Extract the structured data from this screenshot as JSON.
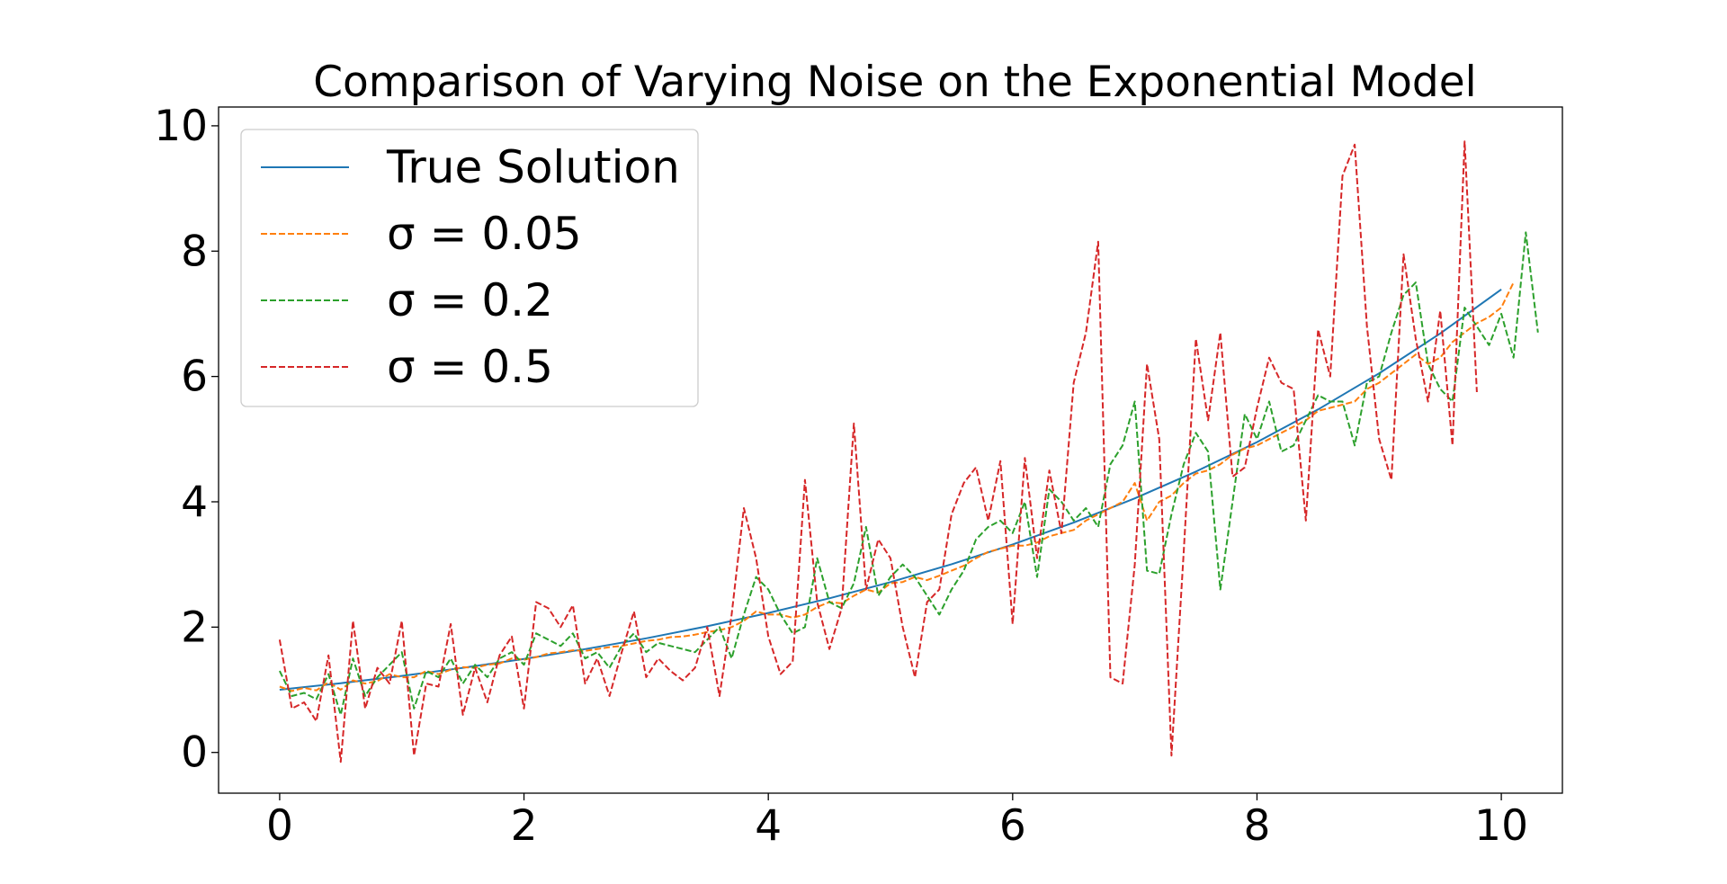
{
  "chart_data": {
    "type": "line",
    "title": "Comparison of Varying Noise on the Exponential Model",
    "xlabel": "",
    "ylabel": "",
    "xlim": [
      -0.5,
      10.5
    ],
    "ylim": [
      -0.65,
      10.3
    ],
    "xticks": [
      "0",
      "2",
      "4",
      "6",
      "8",
      "10"
    ],
    "yticks": [
      "0",
      "2",
      "4",
      "6",
      "8",
      "10"
    ],
    "grid": false,
    "legend_position": "top-left",
    "series": [
      {
        "name": "True Solution",
        "color": "#1f77b4",
        "style": "solid",
        "function": "exp(0.2x)",
        "x": [
          0,
          0.5,
          1,
          1.5,
          2,
          2.5,
          3,
          3.5,
          4,
          4.5,
          5,
          5.5,
          6,
          6.5,
          7,
          7.5,
          8,
          8.5,
          9,
          9.5,
          10
        ],
        "y": [
          1.0,
          1.105,
          1.221,
          1.35,
          1.492,
          1.649,
          1.822,
          2.014,
          2.226,
          2.46,
          2.718,
          3.004,
          3.32,
          3.669,
          4.055,
          4.482,
          4.953,
          5.474,
          6.05,
          6.686,
          7.389
        ]
      },
      {
        "name": "σ = 0.05",
        "color": "#ff7f0e",
        "style": "dashed",
        "x_start": 0,
        "x_step": 0.1,
        "y": [
          1.05,
          0.98,
          1.03,
          0.99,
          1.12,
          1.0,
          1.15,
          1.1,
          1.14,
          1.25,
          1.2,
          1.2,
          1.3,
          1.25,
          1.32,
          1.36,
          1.35,
          1.4,
          1.42,
          1.5,
          1.48,
          1.52,
          1.58,
          1.6,
          1.63,
          1.62,
          1.65,
          1.68,
          1.7,
          1.74,
          1.78,
          1.8,
          1.84,
          1.85,
          1.88,
          1.92,
          1.95,
          2.0,
          2.1,
          2.25,
          2.2,
          2.2,
          2.15,
          2.2,
          2.32,
          2.4,
          2.38,
          2.5,
          2.6,
          2.55,
          2.7,
          2.72,
          2.8,
          2.75,
          2.82,
          2.9,
          2.98,
          3.1,
          3.2,
          3.25,
          3.3,
          3.3,
          3.35,
          3.45,
          3.5,
          3.55,
          3.7,
          3.8,
          3.9,
          4.0,
          4.3,
          3.7,
          4.0,
          4.1,
          4.3,
          4.45,
          4.5,
          4.6,
          4.75,
          4.85,
          4.9,
          5.0,
          5.1,
          5.2,
          5.3,
          5.45,
          5.5,
          5.55,
          5.6,
          5.8,
          5.9,
          6.05,
          6.2,
          6.35,
          6.2,
          6.3,
          6.55,
          6.7,
          6.85,
          6.95,
          7.1,
          7.5
        ]
      },
      {
        "name": "σ = 0.2",
        "color": "#2ca02c",
        "style": "dashed",
        "x_start": 0,
        "x_step": 0.1,
        "y": [
          1.3,
          0.9,
          0.95,
          0.85,
          1.25,
          0.6,
          1.5,
          0.9,
          1.2,
          1.4,
          1.6,
          0.7,
          1.3,
          1.2,
          1.5,
          1.1,
          1.4,
          1.2,
          1.5,
          1.6,
          1.4,
          1.9,
          1.8,
          1.7,
          1.9,
          1.5,
          1.6,
          1.35,
          1.7,
          1.9,
          1.6,
          1.75,
          1.7,
          1.65,
          1.6,
          1.8,
          2.0,
          1.5,
          2.2,
          2.8,
          2.6,
          2.2,
          1.9,
          2.0,
          3.1,
          2.4,
          2.3,
          2.7,
          3.6,
          2.5,
          2.8,
          3.0,
          2.8,
          2.5,
          2.2,
          2.6,
          2.9,
          3.4,
          3.6,
          3.7,
          3.5,
          4.0,
          2.8,
          4.2,
          4.0,
          3.7,
          3.9,
          3.6,
          4.6,
          4.9,
          5.6,
          2.9,
          2.85,
          3.8,
          4.6,
          5.1,
          4.8,
          2.6,
          4.0,
          5.4,
          5.0,
          5.6,
          4.8,
          4.9,
          5.3,
          5.7,
          5.6,
          5.6,
          4.9,
          5.9,
          6.0,
          6.7,
          7.3,
          7.5,
          6.2,
          5.8,
          5.6,
          7.1,
          6.8,
          6.5,
          7.0,
          6.3,
          8.3,
          6.7
        ]
      },
      {
        "name": "σ = 0.5",
        "color": "#d62728",
        "style": "dashed",
        "x_start": 0,
        "x_step": 0.1,
        "y": [
          1.8,
          0.7,
          0.8,
          0.5,
          1.55,
          -0.15,
          2.1,
          0.7,
          1.35,
          1.1,
          2.1,
          -0.05,
          1.1,
          1.05,
          2.05,
          0.6,
          1.35,
          0.8,
          1.55,
          1.85,
          0.7,
          2.4,
          2.3,
          2.0,
          2.35,
          1.1,
          1.5,
          0.9,
          1.6,
          2.25,
          1.2,
          1.5,
          1.3,
          1.15,
          1.35,
          2.0,
          0.9,
          2.2,
          3.9,
          3.1,
          1.85,
          1.25,
          1.45,
          4.35,
          2.4,
          1.65,
          2.3,
          5.25,
          2.6,
          3.4,
          3.1,
          2.0,
          1.2,
          2.4,
          2.6,
          3.8,
          4.3,
          4.55,
          3.7,
          4.65,
          2.05,
          4.7,
          3.1,
          4.5,
          3.5,
          5.9,
          6.7,
          8.15,
          1.2,
          1.1,
          3.0,
          6.2,
          5.0,
          -0.05,
          3.2,
          6.6,
          5.3,
          6.7,
          4.4,
          4.55,
          5.5,
          6.3,
          5.9,
          5.8,
          3.7,
          6.75,
          6.0,
          9.2,
          9.7,
          6.8,
          5.0,
          4.35,
          7.95,
          6.6,
          5.6,
          7.05,
          4.9,
          9.75,
          5.75
        ]
      }
    ]
  }
}
